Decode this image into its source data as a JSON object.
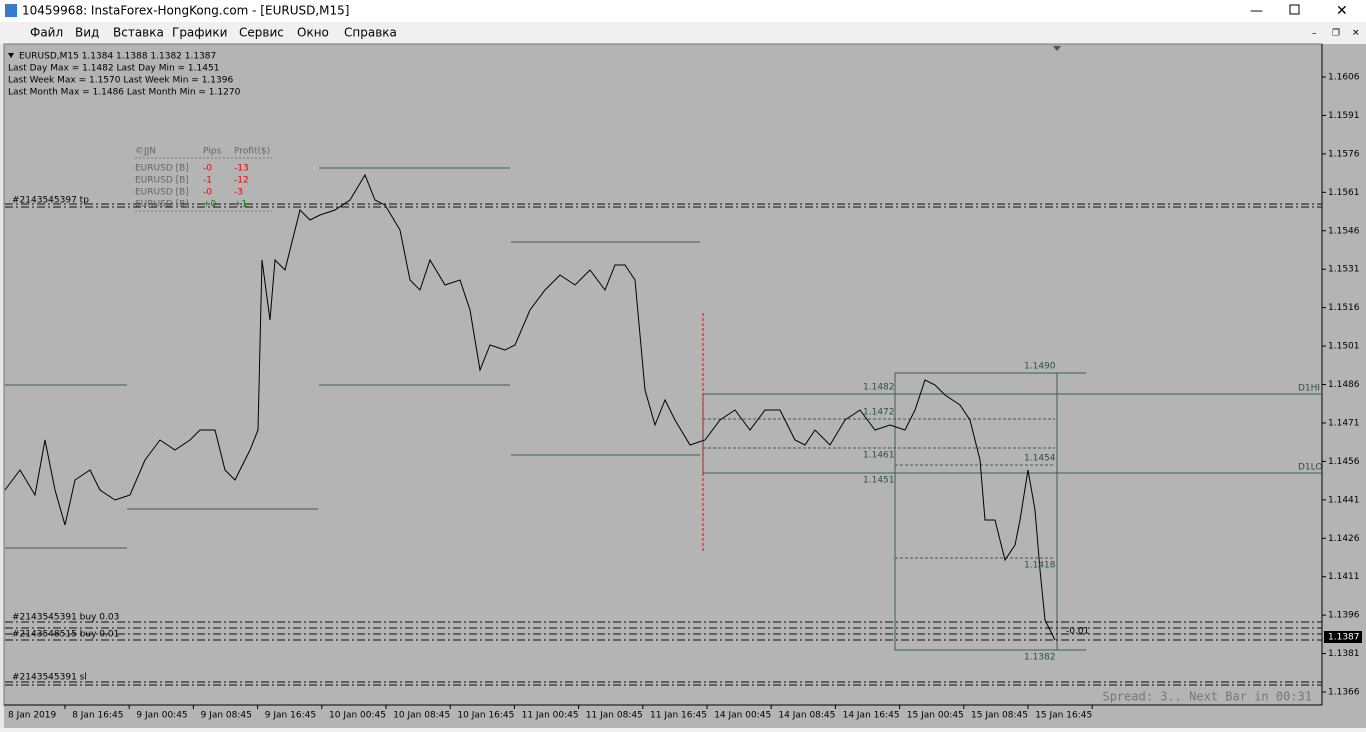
{
  "window": {
    "title": "10459968: InstaForex-HongKong.com - [EURUSD,M15]"
  },
  "menu": [
    "Файл",
    "Вид",
    "Вставка",
    "Графики",
    "Сервис",
    "Окно",
    "Справка"
  ],
  "info": [
    "EURUSD,M15  1.1384 1.1388 1.1382 1.1387",
    "Last Day Max = 1.1482  Last Day Min = 1.1451",
    "Last Week Max = 1.1570  Last Week Min = 1.1396",
    "Last Month Max = 1.1486  Last Month Min = 1.1270"
  ],
  "table": {
    "header": [
      "©JJN",
      "Pips",
      "Profit($)"
    ],
    "rows": [
      [
        "EURUSD [B]",
        "-0",
        "-13"
      ],
      [
        "EURUSD [B]",
        "-1",
        "-12"
      ],
      [
        "EURUSD [B]",
        "-0",
        "-3"
      ],
      [
        "EURUSD [B]",
        "+0",
        "+1"
      ]
    ]
  },
  "price_axis": [
    "1.1606",
    "1.1591",
    "1.1576",
    "1.1561",
    "1.1546",
    "1.1531",
    "1.1516",
    "1.1501",
    "1.1486",
    "1.1471",
    "1.1456",
    "1.1441",
    "1.1426",
    "1.1411",
    "1.1396",
    "1.1381",
    "1.1366"
  ],
  "current_price": "1.1387",
  "time_axis": [
    "8 Jan 2019",
    "8 Jan 16:45",
    "9 Jan 00:45",
    "9 Jan 08:45",
    "9 Jan 16:45",
    "10 Jan 00:45",
    "10 Jan 08:45",
    "10 Jan 16:45",
    "11 Jan 00:45",
    "11 Jan 08:45",
    "11 Jan 16:45",
    "14 Jan 00:45",
    "14 Jan 08:45",
    "14 Jan 16:45",
    "15 Jan 00:45",
    "15 Jan 08:45",
    "15 Jan 16:45"
  ],
  "levels": {
    "box_high": "1.1490",
    "d_high": "1.1482",
    "mid1": "1.1472",
    "mid2": "1.1461",
    "d_low": "1.1451",
    "box_mid": "1.1454",
    "box_low2": "1.1418",
    "box_low": "1.1382",
    "d1hi": "D1HI",
    "d1lo": "D1LO",
    "lot": "-0.01"
  },
  "orders": {
    "tp": "#2143545397 tp",
    "buy1": "#2143545391 buy 0.03",
    "buy2": "#2143548515 buy 0.01",
    "sl": "#2143545391 sl"
  },
  "status": "Spread: 3.. Next Bar in 00:31"
}
